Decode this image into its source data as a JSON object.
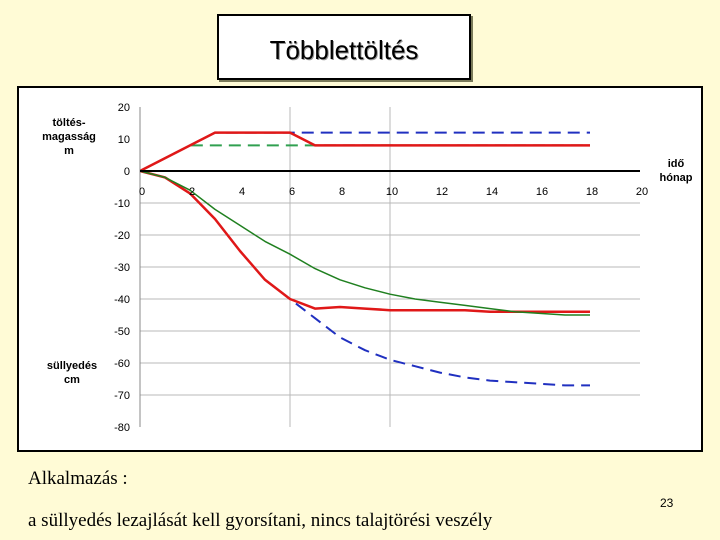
{
  "slide": {
    "title": "Többlettöltés",
    "caption_1": "Alkalmazás :",
    "caption_2": "a süllyedés lezajlását kell gyorsítani, nincs talajtörési veszély",
    "page_number": "23"
  },
  "chart_data": {
    "type": "line",
    "title": "",
    "upper_axis_label": [
      "töltés-",
      "magasság",
      "m"
    ],
    "lower_axis_label": [
      "süllyedés",
      "cm"
    ],
    "x_axis_label": [
      "idő",
      "hónap"
    ],
    "xlim": [
      0,
      20
    ],
    "ylim": [
      -80,
      20
    ],
    "x_ticks": [
      "0",
      "2",
      "4",
      "6",
      "8",
      "10",
      "12",
      "14",
      "16",
      "18",
      "20"
    ],
    "y_ticks": [
      "20",
      "10",
      "0",
      "-10",
      "-20",
      "-30",
      "-40",
      "-50",
      "-60",
      "-70",
      "-80"
    ],
    "grid": "horizontal and vertical lines at x = 6 and x = 10",
    "series": [
      {
        "color": "#2030c0",
        "style": "dashed",
        "x": [
          0,
          3,
          6,
          18
        ],
        "y": [
          0,
          12,
          12,
          12
        ]
      },
      {
        "color": "#30a050",
        "style": "dashed",
        "x": [
          0,
          2,
          7,
          18
        ],
        "y": [
          0,
          8,
          8,
          8
        ]
      },
      {
        "color": "#e01818",
        "style": "solid",
        "x": [
          0,
          3,
          6,
          7,
          18
        ],
        "y": [
          0,
          12,
          12,
          8,
          8
        ]
      },
      {
        "color": "#2030c0",
        "style": "dashed",
        "x": [
          0,
          1,
          2,
          3,
          4,
          5,
          6,
          7,
          8,
          9,
          10,
          11,
          12,
          13,
          14,
          15,
          16,
          17,
          18
        ],
        "y": [
          0,
          -2,
          -7,
          -15,
          -25,
          -34,
          -40,
          -46,
          -52,
          -56,
          -59,
          -61,
          -63,
          -64.5,
          -65.5,
          -66,
          -66.5,
          -67,
          -67
        ]
      },
      {
        "color": "#e01818",
        "style": "solid",
        "x": [
          0,
          1,
          2,
          3,
          4,
          5,
          6,
          7,
          8,
          9,
          10,
          11,
          12,
          13,
          14,
          15,
          16,
          17,
          18
        ],
        "y": [
          0,
          -2,
          -7,
          -15,
          -25,
          -34,
          -40,
          -43,
          -42.5,
          -43,
          -43.5,
          -43.5,
          -43.5,
          -43.5,
          -44,
          -44,
          -44,
          -44,
          -44
        ]
      },
      {
        "color": "#208020",
        "style": "solid",
        "x": [
          0,
          1,
          2,
          3,
          4,
          5,
          6,
          7,
          8,
          9,
          10,
          11,
          12,
          13,
          14,
          15,
          16,
          17,
          18
        ],
        "y": [
          0,
          -2,
          -6,
          -12,
          -17,
          -22,
          -26,
          -30.5,
          -34,
          -36.5,
          -38.5,
          -40,
          -41,
          -42,
          -43,
          -44,
          -44.5,
          -45,
          -45
        ]
      }
    ]
  }
}
